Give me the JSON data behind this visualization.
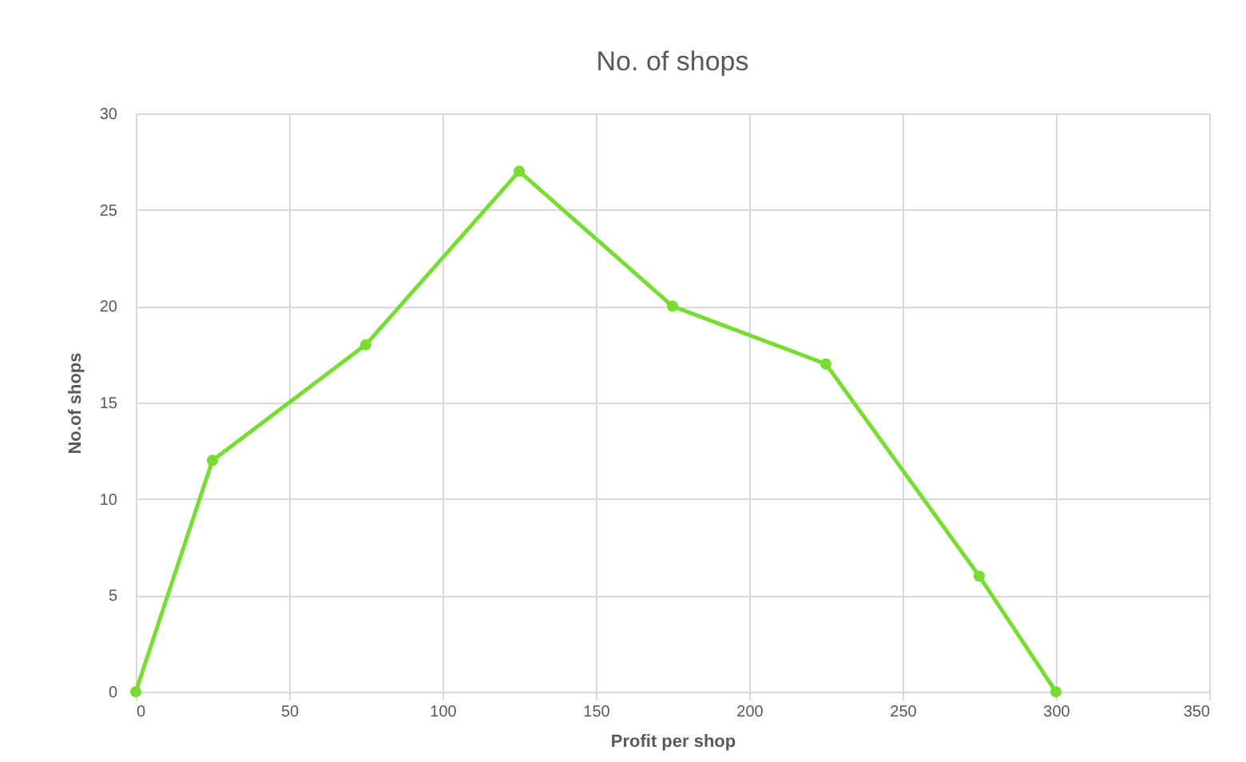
{
  "chart_data": {
    "type": "line",
    "title": "No. of shops",
    "xlabel": "Profit per shop",
    "ylabel": "No.of shops",
    "x": [
      0,
      25,
      75,
      125,
      175,
      225,
      275,
      300
    ],
    "series": [
      {
        "color": "#77dd33",
        "values": [
          0,
          12,
          18,
          27,
          20,
          17,
          6,
          0
        ]
      }
    ],
    "xlim": [
      0,
      350
    ],
    "xticks": [
      0,
      50,
      100,
      150,
      200,
      250,
      300,
      350
    ],
    "ylim": [
      0,
      30
    ],
    "yticks": [
      0,
      5,
      10,
      15,
      20,
      25,
      30
    ],
    "grid": true,
    "marker": "circle",
    "line_style": "solid"
  }
}
